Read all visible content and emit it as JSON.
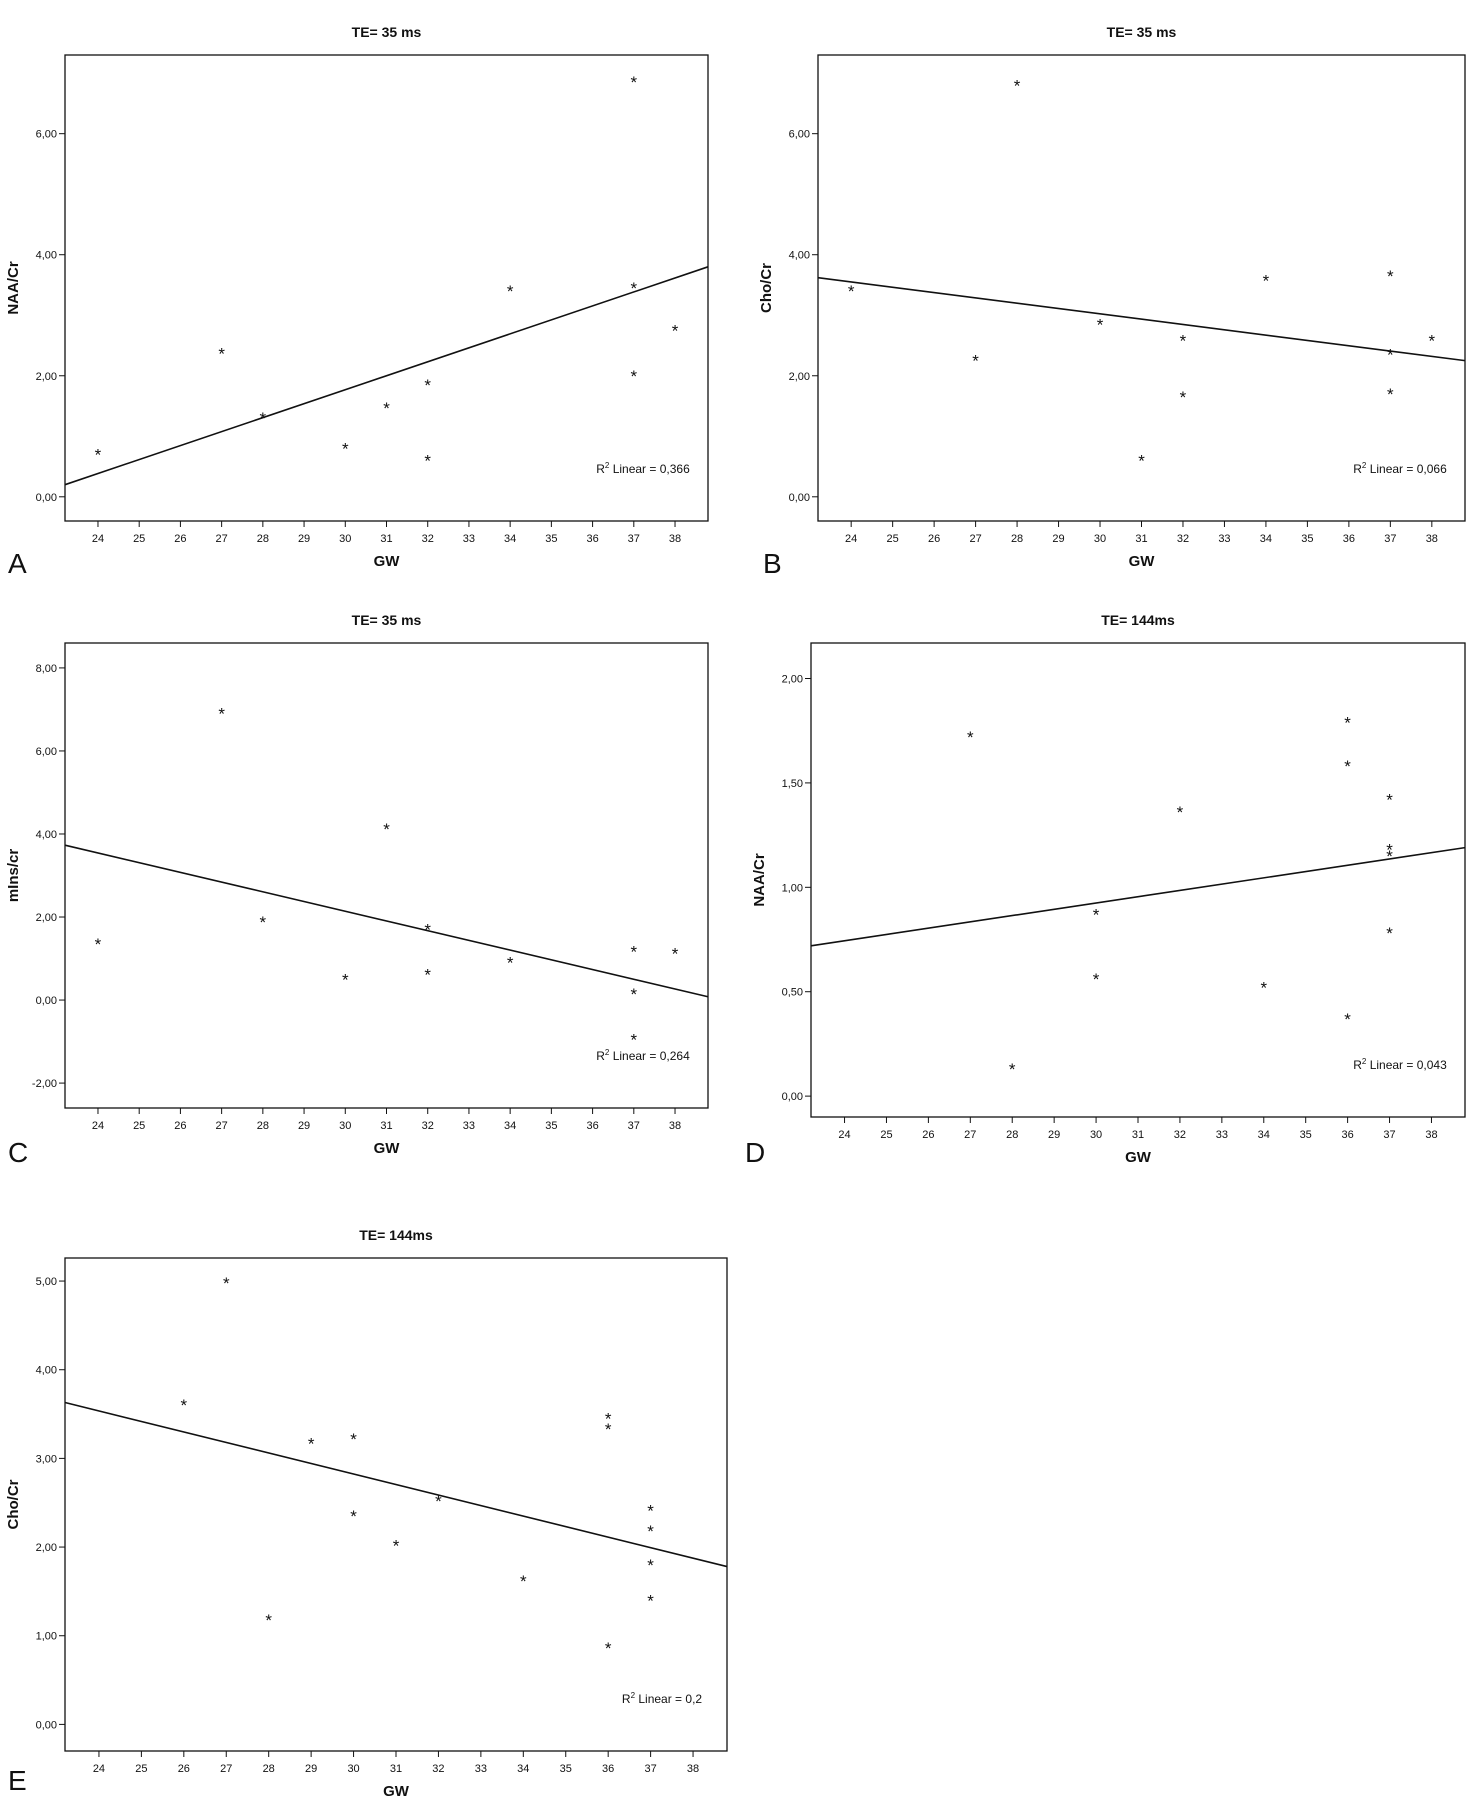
{
  "chart_data": [
    {
      "panel": "A",
      "type": "scatter",
      "title": "TE= 35 ms",
      "xlabel": "GW",
      "ylabel": "NAA/Cr",
      "xlim": [
        23.2,
        38.8
      ],
      "ylim": [
        -0.4,
        7.3
      ],
      "xticks": [
        24,
        25,
        26,
        27,
        28,
        29,
        30,
        31,
        32,
        33,
        34,
        35,
        36,
        37,
        38
      ],
      "yticks": [
        0,
        2,
        4,
        6
      ],
      "ytick_labels": [
        "0,00",
        "2,00",
        "4,00",
        "6,00"
      ],
      "points": [
        [
          24,
          0.7
        ],
        [
          27,
          2.37
        ],
        [
          28,
          1.3
        ],
        [
          30,
          0.8
        ],
        [
          31,
          1.47
        ],
        [
          32,
          1.85
        ],
        [
          32,
          0.6
        ],
        [
          34,
          3.4
        ],
        [
          37,
          6.85
        ],
        [
          37,
          3.45
        ],
        [
          37,
          2.0
        ],
        [
          38,
          2.75
        ]
      ],
      "fit_line": {
        "x": [
          23.2,
          38.8
        ],
        "y": [
          0.2,
          3.8
        ]
      },
      "annotation": {
        "prefix": "R",
        "sup": "2",
        "suffix": " Linear = 0,366"
      },
      "legend": "none",
      "grid": false
    },
    {
      "panel": "B",
      "type": "scatter",
      "title": "TE= 35 ms",
      "xlabel": "GW",
      "ylabel": "Cho/Cr",
      "xlim": [
        23.2,
        38.8
      ],
      "ylim": [
        -0.4,
        7.3
      ],
      "xticks": [
        24,
        25,
        26,
        27,
        28,
        29,
        30,
        31,
        32,
        33,
        34,
        35,
        36,
        37,
        38
      ],
      "yticks": [
        0,
        2,
        4,
        6
      ],
      "ytick_labels": [
        "0,00",
        "2,00",
        "4,00",
        "6,00"
      ],
      "points": [
        [
          24,
          3.4
        ],
        [
          27,
          2.25
        ],
        [
          28,
          6.8
        ],
        [
          30,
          2.85
        ],
        [
          31,
          0.6
        ],
        [
          32,
          2.58
        ],
        [
          32,
          1.65
        ],
        [
          34,
          3.57
        ],
        [
          37,
          3.65
        ],
        [
          37,
          2.35
        ],
        [
          37,
          1.7
        ],
        [
          38,
          2.58
        ]
      ],
      "fit_line": {
        "x": [
          23.2,
          38.8
        ],
        "y": [
          3.62,
          2.25
        ]
      },
      "annotation": {
        "prefix": "R",
        "sup": "2",
        "suffix": " Linear = 0,066"
      },
      "legend": "none",
      "grid": false
    },
    {
      "panel": "C",
      "type": "scatter",
      "title": "TE= 35 ms",
      "xlabel": "GW",
      "ylabel": "mIns/cr",
      "xlim": [
        23.2,
        38.8
      ],
      "ylim": [
        -2.6,
        8.6
      ],
      "xticks": [
        24,
        25,
        26,
        27,
        28,
        29,
        30,
        31,
        32,
        33,
        34,
        35,
        36,
        37,
        38
      ],
      "yticks": [
        -2,
        0,
        2,
        4,
        6,
        8
      ],
      "ytick_labels": [
        "-2,00",
        "0,00",
        "2,00",
        "4,00",
        "6,00",
        "8,00"
      ],
      "points": [
        [
          24,
          1.35
        ],
        [
          27,
          6.9
        ],
        [
          28,
          1.88
        ],
        [
          30,
          0.5
        ],
        [
          31,
          4.12
        ],
        [
          32,
          1.7
        ],
        [
          32,
          0.62
        ],
        [
          34,
          0.9
        ],
        [
          37,
          1.17
        ],
        [
          37,
          0.15
        ],
        [
          37,
          -0.95
        ],
        [
          38,
          1.12
        ]
      ],
      "fit_line": {
        "x": [
          23.2,
          38.8
        ],
        "y": [
          3.73,
          0.08
        ]
      },
      "annotation": {
        "prefix": "R",
        "sup": "2",
        "suffix": " Linear = 0,264"
      },
      "legend": "none",
      "grid": false
    },
    {
      "panel": "D",
      "type": "scatter",
      "title": "TE= 144ms",
      "xlabel": "GW",
      "ylabel": "NAA/Cr",
      "xlim": [
        23.2,
        38.8
      ],
      "ylim": [
        -0.1,
        2.17
      ],
      "xticks": [
        24,
        25,
        26,
        27,
        28,
        29,
        30,
        31,
        32,
        33,
        34,
        35,
        36,
        37,
        38
      ],
      "yticks": [
        0,
        0.5,
        1.0,
        1.5,
        2.0
      ],
      "ytick_labels": [
        "0,00",
        "0,50",
        "1,00",
        "1,50",
        "2,00"
      ],
      "points": [
        [
          27,
          1.72
        ],
        [
          28,
          0.13
        ],
        [
          30,
          0.87
        ],
        [
          30,
          0.56
        ],
        [
          32,
          1.36
        ],
        [
          34,
          0.52
        ],
        [
          36,
          1.79
        ],
        [
          36,
          1.58
        ],
        [
          36,
          0.37
        ],
        [
          37,
          1.42
        ],
        [
          37,
          1.18
        ],
        [
          37,
          1.15
        ],
        [
          37,
          0.78
        ]
      ],
      "fit_line": {
        "x": [
          23.2,
          38.8
        ],
        "y": [
          0.72,
          1.19
        ]
      },
      "annotation": {
        "prefix": "R",
        "sup": "2",
        "suffix": " Linear = 0,043"
      },
      "legend": "none",
      "grid": false
    },
    {
      "panel": "E",
      "type": "scatter",
      "title": "TE= 144ms",
      "xlabel": "GW",
      "ylabel": "Cho/Cr",
      "xlim": [
        23.2,
        38.8
      ],
      "ylim": [
        -0.3,
        5.26
      ],
      "xticks": [
        24,
        25,
        26,
        27,
        28,
        29,
        30,
        31,
        32,
        33,
        34,
        35,
        36,
        37,
        38
      ],
      "yticks": [
        0,
        1,
        2,
        3,
        4,
        5
      ],
      "ytick_labels": [
        "0,00",
        "1,00",
        "2,00",
        "3,00",
        "4,00",
        "5,00"
      ],
      "points": [
        [
          26,
          3.6
        ],
        [
          27,
          4.98
        ],
        [
          28,
          1.18
        ],
        [
          29,
          3.17
        ],
        [
          30,
          3.22
        ],
        [
          30,
          2.35
        ],
        [
          31,
          2.02
        ],
        [
          32,
          2.52
        ],
        [
          34,
          1.62
        ],
        [
          36,
          3.45
        ],
        [
          36,
          3.33
        ],
        [
          36,
          0.86
        ],
        [
          37,
          2.41
        ],
        [
          37,
          2.18
        ],
        [
          37,
          1.8
        ],
        [
          37,
          1.4
        ]
      ],
      "fit_line": {
        "x": [
          23.2,
          38.8
        ],
        "y": [
          3.63,
          1.78
        ]
      },
      "annotation": {
        "prefix": "R",
        "sup": "2",
        "suffix": " Linear = 0,2"
      },
      "legend": "none",
      "grid": false
    }
  ]
}
